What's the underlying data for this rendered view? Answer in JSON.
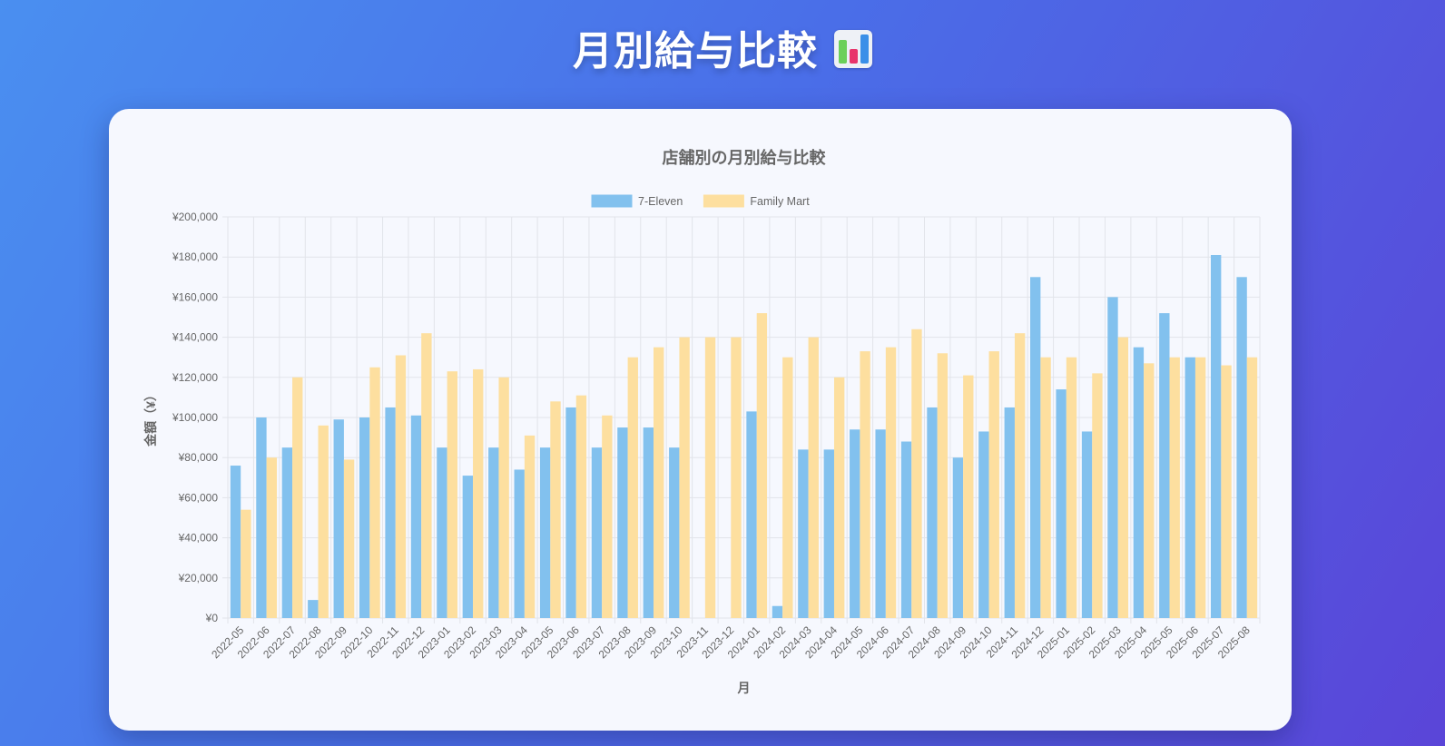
{
  "page": {
    "title": "月別給与比較",
    "title_icon": "bar-chart-icon"
  },
  "chart_data": {
    "type": "bar",
    "title": "店舗別の月別給与比較",
    "xlabel": "月",
    "ylabel": "金額（¥）",
    "ylim": [
      0,
      200000
    ],
    "yticks": [
      "¥0",
      "¥20,000",
      "¥40,000",
      "¥60,000",
      "¥80,000",
      "¥100,000",
      "¥120,000",
      "¥140,000",
      "¥160,000",
      "¥180,000",
      "¥200,000"
    ],
    "grid": true,
    "legend_position": "top-center",
    "categories": [
      "2022-05",
      "2022-06",
      "2022-07",
      "2022-08",
      "2022-09",
      "2022-10",
      "2022-11",
      "2022-12",
      "2023-01",
      "2023-02",
      "2023-03",
      "2023-04",
      "2023-05",
      "2023-06",
      "2023-07",
      "2023-08",
      "2023-09",
      "2023-10",
      "2023-11",
      "2023-12",
      "2024-01",
      "2024-02",
      "2024-03",
      "2024-04",
      "2024-05",
      "2024-06",
      "2024-07",
      "2024-08",
      "2024-09",
      "2024-10",
      "2024-11",
      "2024-12",
      "2025-01",
      "2025-02",
      "2025-03",
      "2025-04",
      "2025-05",
      "2025-06",
      "2025-07",
      "2025-08"
    ],
    "series": [
      {
        "name": "7-Eleven",
        "color": "#82c1ee",
        "values": [
          76000,
          100000,
          85000,
          9000,
          99000,
          100000,
          105000,
          101000,
          85000,
          71000,
          85000,
          74000,
          85000,
          105000,
          85000,
          95000,
          95000,
          85000,
          0,
          0,
          103000,
          6000,
          84000,
          84000,
          94000,
          94000,
          88000,
          105000,
          80000,
          93000,
          105000,
          170000,
          114000,
          93000,
          160000,
          135000,
          152000,
          130000,
          181000,
          170000
        ]
      },
      {
        "name": "Family Mart",
        "color": "#fddf9f",
        "values": [
          54000,
          80000,
          120000,
          96000,
          79000,
          125000,
          131000,
          142000,
          123000,
          124000,
          120000,
          91000,
          108000,
          111000,
          101000,
          130000,
          135000,
          140000,
          140000,
          140000,
          152000,
          130000,
          140000,
          120000,
          133000,
          135000,
          144000,
          132000,
          121000,
          133000,
          142000,
          130000,
          130000,
          122000,
          140000,
          127000,
          130000,
          130000,
          126000,
          130000
        ]
      }
    ]
  }
}
